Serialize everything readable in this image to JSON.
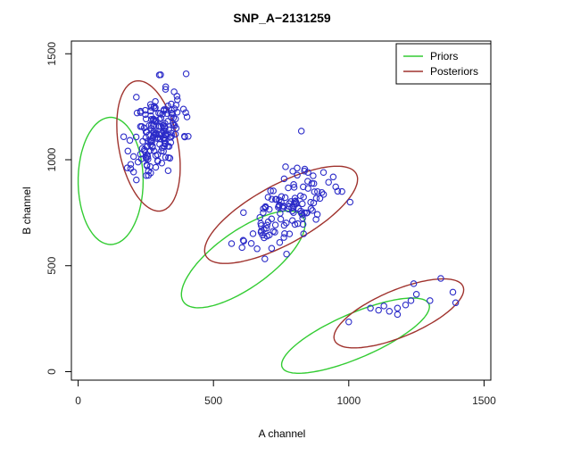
{
  "chart_data": {
    "type": "scatter",
    "title": "SNP_A−2131259",
    "xlabel": "A channel",
    "ylabel": "B channel",
    "xlim": [
      -25,
      1525
    ],
    "ylim": [
      -40,
      1560
    ],
    "x_ticks": [
      0,
      500,
      1000,
      1500
    ],
    "y_ticks": [
      0,
      500,
      1000,
      1500
    ],
    "legend": {
      "placement": "top-right",
      "entries": [
        {
          "label": "Priors",
          "color": "#33cc33"
        },
        {
          "label": "Posteriors",
          "color": "#a0332e"
        }
      ]
    },
    "point_color": "#2b2bc8",
    "ellipses": [
      {
        "series": "Priors",
        "cx": 120,
        "cy": 900,
        "rx": 120,
        "ry": 300,
        "angle": 0
      },
      {
        "series": "Priors",
        "cx": 610,
        "cy": 530,
        "rx": 300,
        "ry": 120,
        "angle": 45
      },
      {
        "series": "Priors",
        "cx": 1025,
        "cy": 170,
        "rx": 310,
        "ry": 100,
        "angle": 30
      },
      {
        "series": "Posteriors",
        "cx": 260,
        "cy": 1065,
        "rx": 110,
        "ry": 310,
        "angle": 8
      },
      {
        "series": "Posteriors",
        "cx": 750,
        "cy": 740,
        "rx": 340,
        "ry": 130,
        "angle": 37
      },
      {
        "series": "Posteriors",
        "cx": 1185,
        "cy": 275,
        "rx": 270,
        "ry": 105,
        "angle": 30
      }
    ],
    "clusters": [
      {
        "name": "cluster-1",
        "cx": 295,
        "cy": 1125,
        "sx": 45,
        "sy": 105,
        "corr": 0.35,
        "n": 165,
        "seed": 11,
        "extra": [
          [
            300,
            1400
          ],
          [
            365,
            1300
          ],
          [
            215,
            1295
          ],
          [
            215,
            905
          ],
          [
            205,
            1015
          ]
        ]
      },
      {
        "name": "cluster-2",
        "cx": 770,
        "cy": 760,
        "sx": 75,
        "sy": 85,
        "corr": 0.6,
        "n": 120,
        "seed": 23,
        "extra": [
          [
            825,
            1135
          ],
          [
            610,
            620
          ],
          [
            640,
            605
          ],
          [
            770,
            555
          ],
          [
            1005,
            800
          ],
          [
            975,
            850
          ]
        ]
      }
    ],
    "points": [
      [
        1000,
        235
      ],
      [
        1080,
        300
      ],
      [
        1110,
        290
      ],
      [
        1130,
        310
      ],
      [
        1150,
        285
      ],
      [
        1180,
        270
      ],
      [
        1210,
        315
      ],
      [
        1230,
        335
      ],
      [
        1250,
        365
      ],
      [
        1240,
        415
      ],
      [
        1300,
        335
      ],
      [
        1340,
        440
      ],
      [
        1385,
        375
      ],
      [
        1395,
        325
      ],
      [
        1180,
        300
      ]
    ]
  }
}
